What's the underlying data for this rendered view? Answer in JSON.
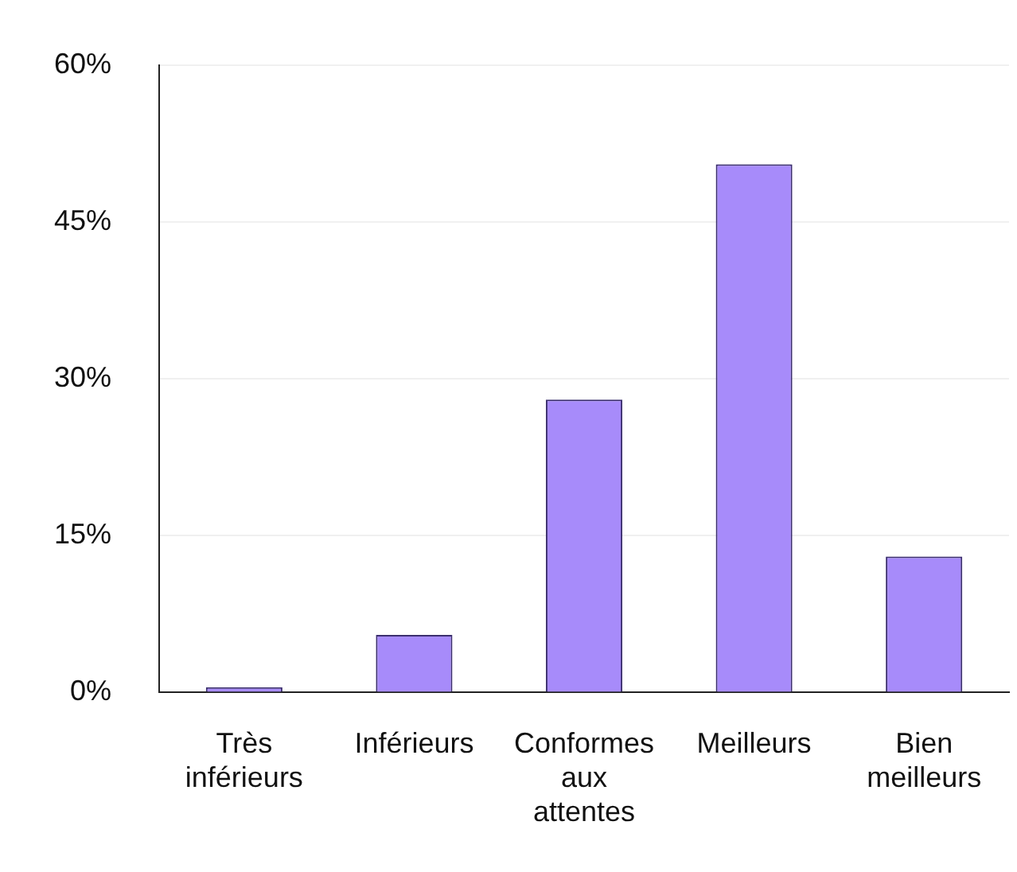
{
  "chart_data": {
    "type": "bar",
    "categories": [
      "Très inférieurs",
      "Inférieurs",
      "Conformes aux attentes",
      "Meilleurs",
      "Bien meilleurs"
    ],
    "values": [
      0.5,
      5.5,
      28,
      50.5,
      13
    ],
    "color": "#a78bfa",
    "ylim": [
      0,
      60
    ],
    "yticks": [
      {
        "value": 0,
        "label": "0%"
      },
      {
        "value": 15,
        "label": "15%"
      },
      {
        "value": 30,
        "label": "30%"
      },
      {
        "value": 45,
        "label": "45%"
      },
      {
        "value": 60,
        "label": "60%"
      }
    ],
    "grid": "y"
  }
}
